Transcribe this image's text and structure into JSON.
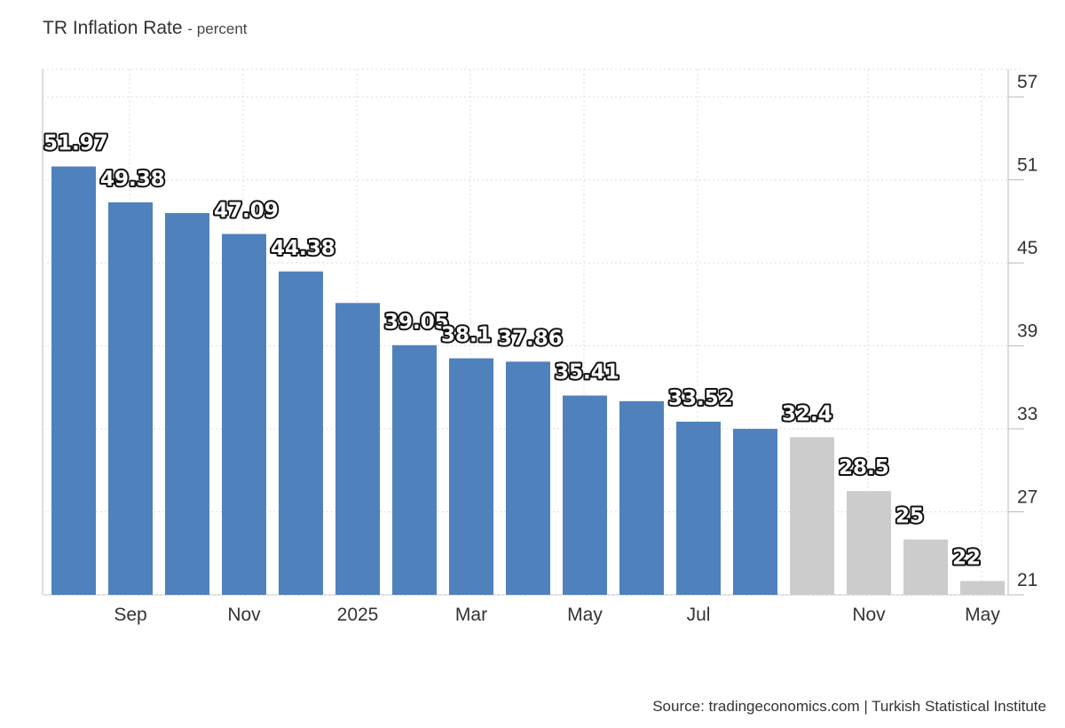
{
  "header": {
    "title": "TR Inflation Rate",
    "subtitle": "- percent"
  },
  "footer": {
    "source": "Source: tradingeconomics.com | Turkish Statistical Institute"
  },
  "chart_data": {
    "type": "bar",
    "title": "TR Inflation Rate",
    "ylabel": "percent",
    "ylim": [
      21,
      59
    ],
    "yticks": [
      21,
      27,
      33,
      39,
      45,
      51,
      57
    ],
    "y_axis_side": "right",
    "grid": true,
    "x_tick_labels": [
      {
        "index": 1,
        "label": "Sep"
      },
      {
        "index": 3,
        "label": "Nov"
      },
      {
        "index": 5,
        "label": "2025"
      },
      {
        "index": 7,
        "label": "Mar"
      },
      {
        "index": 9,
        "label": "May"
      },
      {
        "index": 11,
        "label": "Jul"
      },
      {
        "index": 14,
        "label": "Nov"
      },
      {
        "index": 16,
        "label": "May"
      }
    ],
    "bars": [
      {
        "value": 51.97,
        "label": "51.97",
        "kind": "actual"
      },
      {
        "value": 49.38,
        "label": "49.38",
        "kind": "actual"
      },
      {
        "value": 48.6,
        "label": "",
        "kind": "actual"
      },
      {
        "value": 47.09,
        "label": "47.09",
        "kind": "actual"
      },
      {
        "value": 44.38,
        "label": "44.38",
        "kind": "actual"
      },
      {
        "value": 42.1,
        "label": "",
        "kind": "actual"
      },
      {
        "value": 39.05,
        "label": "39.05",
        "kind": "actual"
      },
      {
        "value": 38.1,
        "label": "38.1",
        "kind": "actual"
      },
      {
        "value": 37.86,
        "label": "37.86",
        "kind": "actual"
      },
      {
        "value": 35.41,
        "label": "35.41",
        "kind": "actual"
      },
      {
        "value": 35.0,
        "label": "",
        "kind": "actual"
      },
      {
        "value": 33.52,
        "label": "33.52",
        "kind": "actual"
      },
      {
        "value": 33.0,
        "label": "",
        "kind": "actual"
      },
      {
        "value": 32.4,
        "label": "32.4",
        "kind": "forecast"
      },
      {
        "value": 28.5,
        "label": "28.5",
        "kind": "forecast"
      },
      {
        "value": 25,
        "label": "25",
        "kind": "forecast"
      },
      {
        "value": 22,
        "label": "22",
        "kind": "forecast"
      }
    ],
    "colors": {
      "actual": "#4f81bd",
      "forecast": "#cccccc",
      "grid": "#dddddd",
      "axis": "#bbbbbb"
    }
  }
}
